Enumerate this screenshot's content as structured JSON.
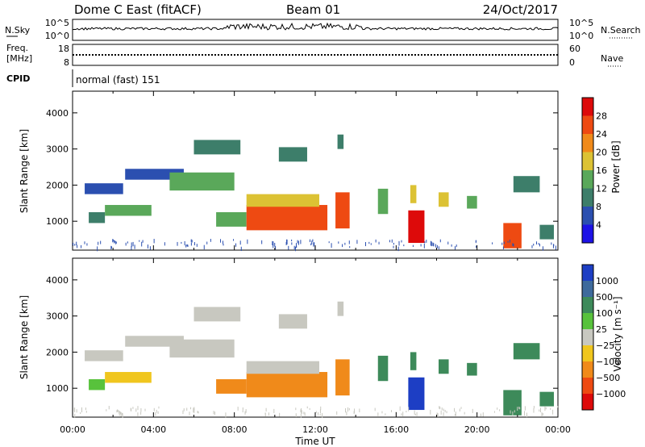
{
  "header": {
    "station": "Dome C East (fitACF)",
    "beam": "Beam 01",
    "date": "24/Oct/2017"
  },
  "status_panels": {
    "nsky_label": "N.Sky",
    "nsearch_label": "N.Search",
    "nsky_ticks": [
      "10^5",
      "10^0"
    ],
    "nsearch_ticks": [
      "10^5",
      "10^0"
    ],
    "freq_label_line1": "Freq.",
    "freq_label_line2": "[MHz]",
    "freq_ticks": [
      "18",
      "8"
    ],
    "nave_label": "Nave",
    "nave_ticks": [
      "60",
      "0"
    ],
    "cpid_label": "CPID",
    "cpid_text": "normal (fast) 151"
  },
  "chart_data": [
    {
      "type": "heatmap",
      "quantity": "power",
      "ylabel": "Slant Range [km]",
      "yticks": [
        1000,
        2000,
        3000,
        4000
      ],
      "ylim": [
        200,
        4600
      ],
      "xlim": [
        0,
        24
      ],
      "colorbar": {
        "label": "Power [dB]",
        "ticks": [
          "4",
          "8",
          "12",
          "16",
          "20",
          "24",
          "28"
        ],
        "colors": [
          "#1d12e6",
          "#2b4fb0",
          "#3d7e6a",
          "#5aa85a",
          "#dcc234",
          "#f08a1a",
          "#ee4a12",
          "#dd0a0a"
        ]
      },
      "regions": [
        {
          "t0": 0.6,
          "t1": 2.5,
          "r0": 1750,
          "r1": 2050,
          "color": "#2b4fb0"
        },
        {
          "t0": 2.6,
          "t1": 5.5,
          "r0": 2150,
          "r1": 2450,
          "color": "#2b4fb0"
        },
        {
          "t0": 0.8,
          "t1": 1.6,
          "r0": 950,
          "r1": 1250,
          "color": "#3d7e6a"
        },
        {
          "t0": 1.6,
          "t1": 3.9,
          "r0": 1150,
          "r1": 1450,
          "color": "#5aa85a"
        },
        {
          "t0": 4.8,
          "t1": 8.0,
          "r0": 1850,
          "r1": 2350,
          "color": "#5aa85a"
        },
        {
          "t0": 6.0,
          "t1": 8.3,
          "r0": 2850,
          "r1": 3250,
          "color": "#3d7e6a"
        },
        {
          "t0": 7.1,
          "t1": 8.6,
          "r0": 850,
          "r1": 1250,
          "color": "#5aa85a"
        },
        {
          "t0": 8.6,
          "t1": 12.6,
          "r0": 750,
          "r1": 1450,
          "color": "#ee4a12"
        },
        {
          "t0": 8.6,
          "t1": 12.2,
          "r0": 1400,
          "r1": 1750,
          "color": "#dcc234"
        },
        {
          "t0": 10.2,
          "t1": 11.6,
          "r0": 2650,
          "r1": 3050,
          "color": "#3d7e6a"
        },
        {
          "t0": 13.0,
          "t1": 13.7,
          "r0": 800,
          "r1": 1800,
          "color": "#ee4a12"
        },
        {
          "t0": 13.1,
          "t1": 13.4,
          "r0": 3000,
          "r1": 3400,
          "color": "#3d7e6a"
        },
        {
          "t0": 15.1,
          "t1": 15.6,
          "r0": 1200,
          "r1": 1900,
          "color": "#5aa85a"
        },
        {
          "t0": 16.6,
          "t1": 17.4,
          "r0": 400,
          "r1": 1300,
          "color": "#dd0a0a"
        },
        {
          "t0": 16.7,
          "t1": 17.0,
          "r0": 1500,
          "r1": 2000,
          "color": "#dcc234"
        },
        {
          "t0": 18.1,
          "t1": 18.6,
          "r0": 1400,
          "r1": 1800,
          "color": "#dcc234"
        },
        {
          "t0": 19.5,
          "t1": 20.0,
          "r0": 1350,
          "r1": 1700,
          "color": "#5aa85a"
        },
        {
          "t0": 21.3,
          "t1": 22.2,
          "r0": 250,
          "r1": 950,
          "color": "#ee4a12"
        },
        {
          "t0": 21.8,
          "t1": 23.1,
          "r0": 1800,
          "r1": 2250,
          "color": "#3d7e6a"
        },
        {
          "t0": 23.1,
          "t1": 23.8,
          "r0": 500,
          "r1": 900,
          "color": "#3d7e6a"
        }
      ]
    },
    {
      "type": "heatmap",
      "quantity": "velocity",
      "ylabel": "Slant Range [km]",
      "xlabel": "Time UT",
      "xticks": [
        "00:00",
        "04:00",
        "08:00",
        "12:00",
        "16:00",
        "20:00",
        "00:00"
      ],
      "yticks": [
        1000,
        2000,
        3000,
        4000
      ],
      "ylim": [
        200,
        4600
      ],
      "xlim": [
        0,
        24
      ],
      "colorbar": {
        "label": "Velocity [m s⁻¹]",
        "ticks": [
          "1000",
          "500",
          "100",
          "25",
          "−25",
          "−100",
          "−500",
          "−1000"
        ],
        "colors": [
          "#1d3ec4",
          "#3e6a9c",
          "#3d8a5a",
          "#58c23c",
          "#c8c8c0",
          "#f0c61e",
          "#f08a1a",
          "#ee4a12",
          "#dd0a0a"
        ]
      },
      "regions": [
        {
          "t0": 0.6,
          "t1": 2.5,
          "r0": 1750,
          "r1": 2050,
          "color": "#c8c8c0"
        },
        {
          "t0": 2.6,
          "t1": 5.5,
          "r0": 2150,
          "r1": 2450,
          "color": "#c8c8c0"
        },
        {
          "t0": 0.8,
          "t1": 1.6,
          "r0": 950,
          "r1": 1250,
          "color": "#58c23c"
        },
        {
          "t0": 1.6,
          "t1": 3.9,
          "r0": 1150,
          "r1": 1450,
          "color": "#f0c61e"
        },
        {
          "t0": 4.8,
          "t1": 8.0,
          "r0": 1850,
          "r1": 2350,
          "color": "#c8c8c0"
        },
        {
          "t0": 6.0,
          "t1": 8.3,
          "r0": 2850,
          "r1": 3250,
          "color": "#c8c8c0"
        },
        {
          "t0": 7.1,
          "t1": 8.6,
          "r0": 850,
          "r1": 1250,
          "color": "#f08a1a"
        },
        {
          "t0": 8.6,
          "t1": 12.6,
          "r0": 750,
          "r1": 1450,
          "color": "#f08a1a"
        },
        {
          "t0": 8.6,
          "t1": 12.2,
          "r0": 1400,
          "r1": 1750,
          "color": "#c8c8c0"
        },
        {
          "t0": 10.2,
          "t1": 11.6,
          "r0": 2650,
          "r1": 3050,
          "color": "#c8c8c0"
        },
        {
          "t0": 13.0,
          "t1": 13.7,
          "r0": 800,
          "r1": 1800,
          "color": "#f08a1a"
        },
        {
          "t0": 13.1,
          "t1": 13.4,
          "r0": 3000,
          "r1": 3400,
          "color": "#c8c8c0"
        },
        {
          "t0": 15.1,
          "t1": 15.6,
          "r0": 1200,
          "r1": 1900,
          "color": "#3d8a5a"
        },
        {
          "t0": 16.6,
          "t1": 17.4,
          "r0": 400,
          "r1": 1300,
          "color": "#1d3ec4"
        },
        {
          "t0": 16.7,
          "t1": 17.0,
          "r0": 1500,
          "r1": 2000,
          "color": "#3d8a5a"
        },
        {
          "t0": 18.1,
          "t1": 18.6,
          "r0": 1400,
          "r1": 1800,
          "color": "#3d8a5a"
        },
        {
          "t0": 19.5,
          "t1": 20.0,
          "r0": 1350,
          "r1": 1700,
          "color": "#3d8a5a"
        },
        {
          "t0": 21.3,
          "t1": 22.2,
          "r0": 250,
          "r1": 950,
          "color": "#3d8a5a"
        },
        {
          "t0": 21.8,
          "t1": 23.1,
          "r0": 1800,
          "r1": 2250,
          "color": "#3d8a5a"
        },
        {
          "t0": 23.1,
          "t1": 23.8,
          "r0": 500,
          "r1": 900,
          "color": "#3d8a5a"
        }
      ]
    }
  ]
}
